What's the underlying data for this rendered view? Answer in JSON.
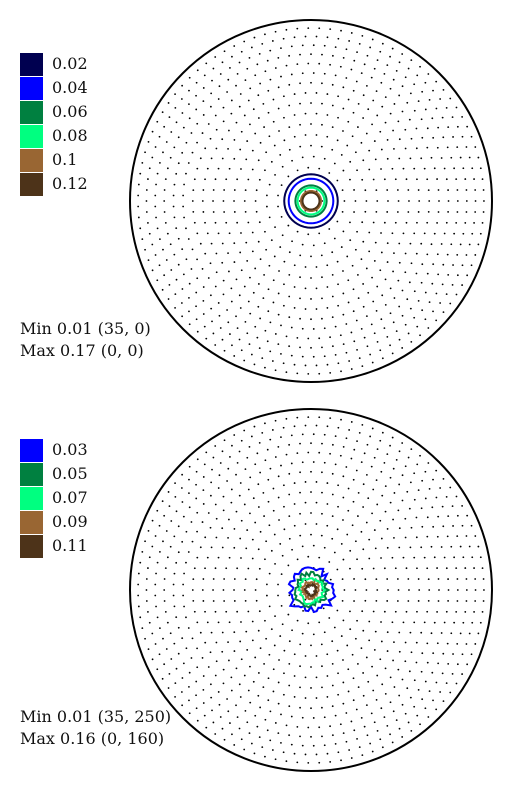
{
  "chart_data": [
    {
      "type": "contour",
      "plot": "pole figure",
      "legend": [
        {
          "value": "0.02",
          "color": "#000050"
        },
        {
          "value": "0.04",
          "color": "#0000ff"
        },
        {
          "value": "0.06",
          "color": "#008040"
        },
        {
          "value": "0.08",
          "color": "#00ff80"
        },
        {
          "value": "0.1",
          "color": "#996633"
        },
        {
          "value": "0.12",
          "color": "#4d3319"
        }
      ],
      "contours": [
        {
          "level": 0.02,
          "radius_deg": 12.0
        },
        {
          "level": 0.04,
          "radius_deg": 10.0
        },
        {
          "level": 0.06,
          "radius_deg": 7.0
        },
        {
          "level": 0.08,
          "radius_deg": 6.0
        },
        {
          "level": 0.1,
          "radius_deg": 4.5
        },
        {
          "level": 0.12,
          "radius_deg": 3.8
        }
      ],
      "stats": {
        "min_label": "Min 0.01 (35, 0)",
        "max_label": "Max 0.17 (0, 0)"
      }
    },
    {
      "type": "contour",
      "plot": "pole figure",
      "legend": [
        {
          "value": "0.03",
          "color": "#0000ff"
        },
        {
          "value": "0.05",
          "color": "#008040"
        },
        {
          "value": "0.07",
          "color": "#00ff80"
        },
        {
          "value": "0.09",
          "color": "#996633"
        },
        {
          "value": "0.11",
          "color": "#4d3319"
        }
      ],
      "contours": [
        {
          "level": 0.03,
          "radius_deg": 9.5
        },
        {
          "level": 0.05,
          "radius_deg": 7.0
        },
        {
          "level": 0.07,
          "radius_deg": 5.5
        },
        {
          "level": 0.09,
          "radius_deg": 3.5
        },
        {
          "level": 0.11,
          "radius_deg": 2.3
        }
      ],
      "stats": {
        "min_label": "Min 0.01 (35, 250)",
        "max_label": "Max 0.16 (0, 160)"
      }
    }
  ]
}
